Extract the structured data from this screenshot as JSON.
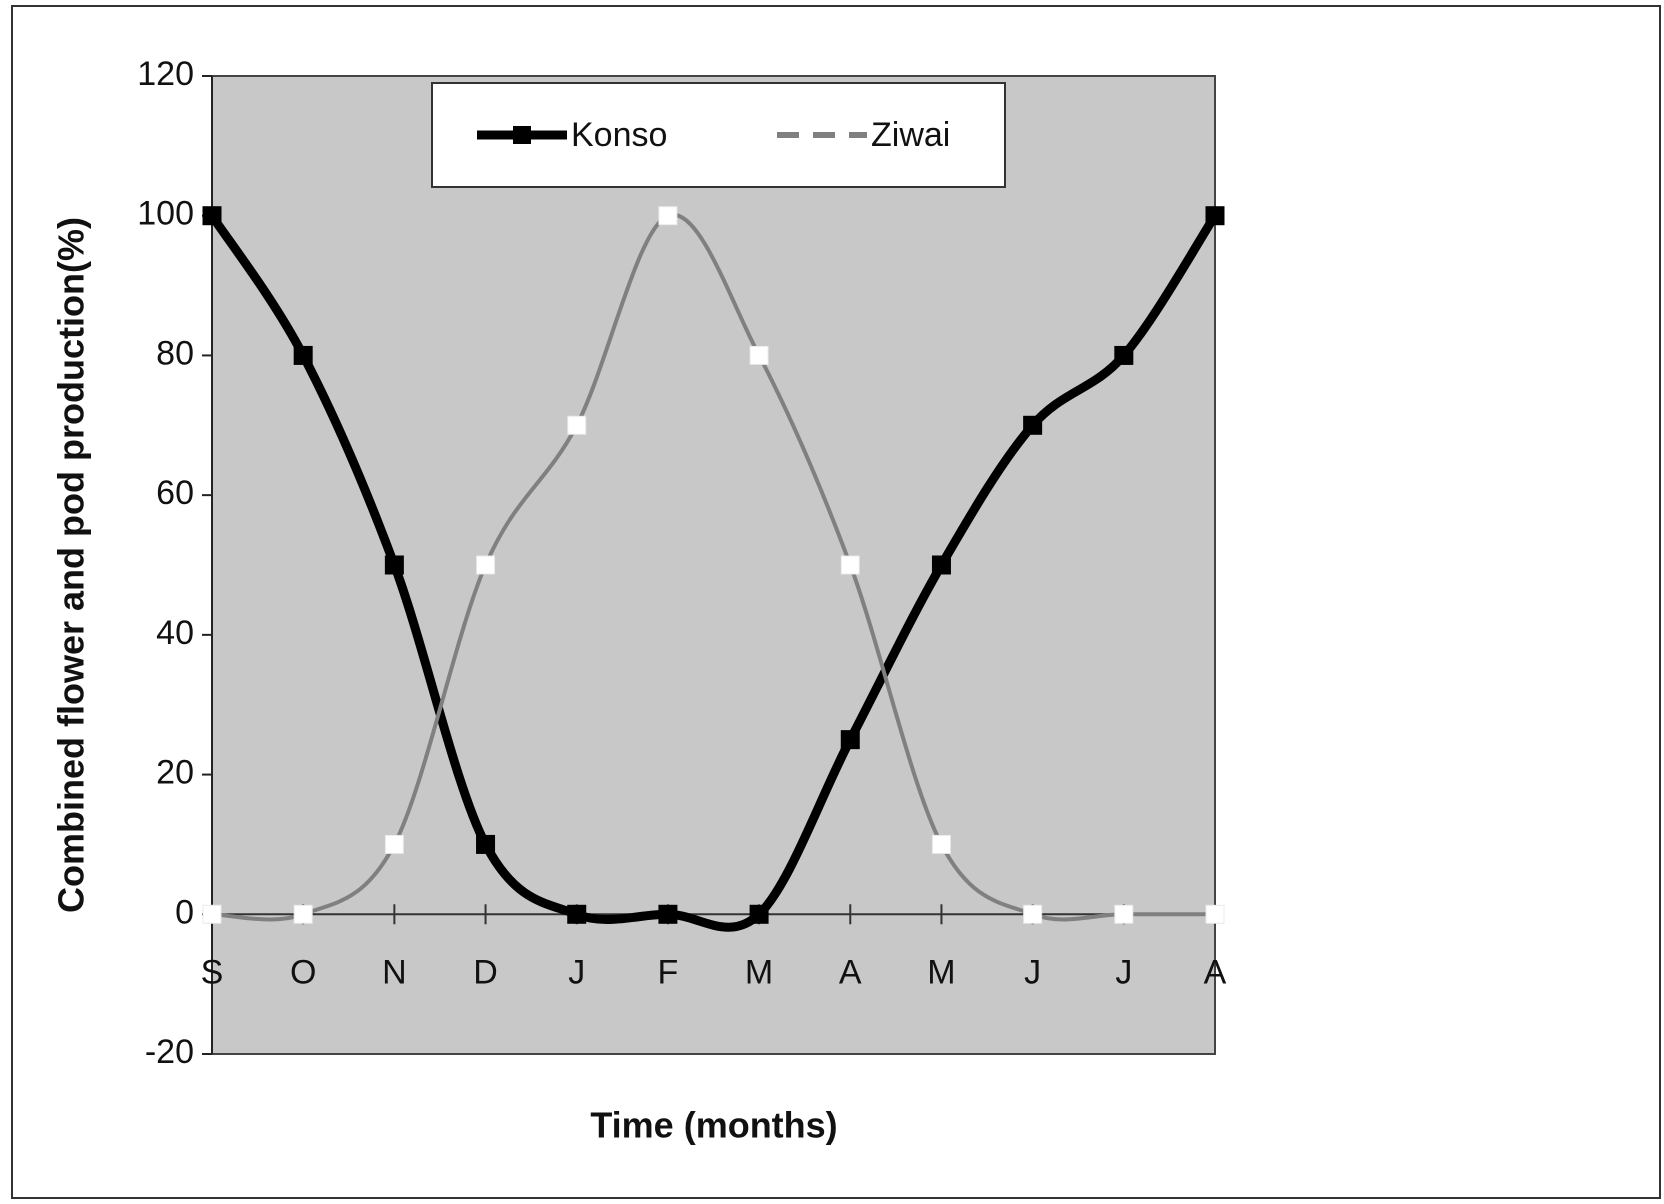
{
  "chart_data": {
    "type": "line",
    "x_label": "Time (months)",
    "y_label": "Combined flower and pod production(%)",
    "categories": [
      "S",
      "O",
      "N",
      "D",
      "J",
      "F",
      "M",
      "A",
      "M",
      "J",
      "J",
      "A"
    ],
    "series": [
      {
        "name": "Konso",
        "color": "#000000",
        "values": [
          100,
          80,
          50,
          10,
          0,
          0,
          0,
          25,
          50,
          70,
          80,
          100
        ]
      },
      {
        "name": "Ziwai",
        "color": "#808080",
        "values": [
          0,
          0,
          10,
          50,
          70,
          100,
          80,
          50,
          10,
          0,
          0,
          0
        ]
      }
    ],
    "ylim": [
      -20,
      120
    ],
    "yticks": [
      -20,
      0,
      20,
      40,
      60,
      80,
      100,
      120
    ],
    "legend": "top",
    "plot_background": "#c8c8c8"
  }
}
